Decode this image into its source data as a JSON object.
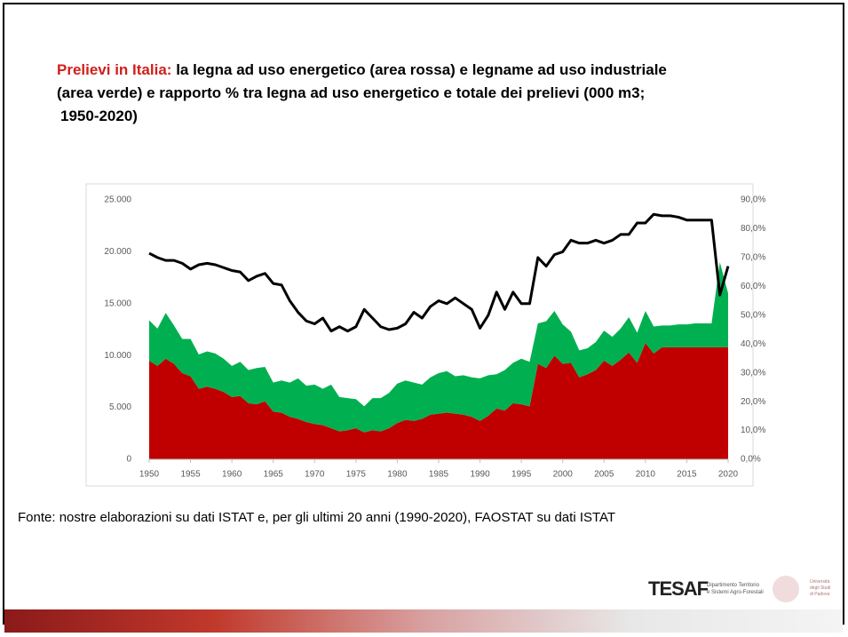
{
  "slide": {
    "title_prefix": "Prelievi in Italia:",
    "title_lines": [
      "la legna ad uso energetico (area rossa) e legname ad uso industriale",
      "(area verde) e rapporto % tra legna ad uso energetico e totale dei prelievi (000 m3;",
      "1950-2020)"
    ],
    "source": "Fonte: nostre elaborazioni su dati ISTAT e, per gli ultimi 20 anni (1990-2020), FAOSTAT su dati ISTAT",
    "logo": "TESAF",
    "logo_sub": [
      "Dipartimento Territorio",
      "e Sistemi Agro-Forestali"
    ],
    "university": [
      "Università",
      "degli Studi",
      "di Padova"
    ]
  },
  "chart_data": {
    "type": "stacked-area-line",
    "x": [
      1950,
      1951,
      1952,
      1953,
      1954,
      1955,
      1956,
      1957,
      1958,
      1959,
      1960,
      1961,
      1962,
      1963,
      1964,
      1965,
      1966,
      1967,
      1968,
      1969,
      1970,
      1971,
      1972,
      1973,
      1974,
      1975,
      1976,
      1977,
      1978,
      1979,
      1980,
      1981,
      1982,
      1983,
      1984,
      1985,
      1986,
      1987,
      1988,
      1989,
      1990,
      1991,
      1992,
      1993,
      1994,
      1995,
      1996,
      1997,
      1998,
      1999,
      2000,
      2001,
      2002,
      2003,
      2004,
      2005,
      2006,
      2007,
      2008,
      2009,
      2010,
      2011,
      2012,
      2013,
      2014,
      2015,
      2016,
      2017,
      2018,
      2019,
      2020
    ],
    "series": [
      {
        "color": "#c00000",
        "values": [
          9500,
          9000,
          9700,
          9200,
          8300,
          8000,
          6800,
          7000,
          6800,
          6500,
          6000,
          6100,
          5400,
          5300,
          5600,
          4600,
          4500,
          4100,
          3900,
          3600,
          3400,
          3300,
          3000,
          2700,
          2800,
          3000,
          2600,
          2800,
          2700,
          3000,
          3500,
          3800,
          3700,
          3900,
          4300,
          4400,
          4500,
          4400,
          4300,
          4100,
          3700,
          4200,
          4900,
          4700,
          5400,
          5300,
          5100,
          9200,
          8800,
          10000,
          9200,
          9300,
          7900,
          8200,
          8600,
          9500,
          9000,
          9600,
          10300,
          9300,
          11200,
          10200,
          10800,
          10800,
          10800,
          10800,
          10800,
          10800,
          10800,
          10800,
          10800
        ]
      },
      {
        "color": "#00b050",
        "values": [
          3900,
          3600,
          4400,
          3700,
          3300,
          3600,
          3300,
          3400,
          3400,
          3200,
          3000,
          3300,
          3200,
          3500,
          3300,
          2800,
          3100,
          3300,
          3900,
          3500,
          3800,
          3500,
          4200,
          3300,
          3100,
          2800,
          2500,
          3100,
          3200,
          3400,
          3800,
          3800,
          3700,
          3300,
          3600,
          3900,
          4000,
          3600,
          3800,
          3800,
          4100,
          3900,
          3300,
          3900,
          3900,
          4400,
          4300,
          3900,
          4500,
          4300,
          3800,
          3000,
          2600,
          2500,
          2700,
          2900,
          2800,
          3000,
          3400,
          2900,
          3100,
          2600,
          2100,
          2100,
          2200,
          2200,
          2300,
          2300,
          2300,
          8200,
          5200
        ]
      },
      {
        "color": "#000000",
        "axis": "y2",
        "values": [
          71.5,
          70,
          69,
          69,
          68,
          66,
          67.5,
          68,
          67.5,
          66.5,
          65.5,
          65,
          62,
          63.5,
          64.5,
          61,
          60.5,
          55,
          51,
          48,
          47,
          49,
          44.5,
          46,
          44.5,
          46,
          52,
          49,
          46,
          45,
          45.5,
          47,
          51,
          49,
          53,
          55,
          54,
          56,
          54,
          52,
          45.5,
          50,
          58,
          52,
          58,
          54,
          54,
          70,
          67,
          71,
          72,
          76,
          75,
          75,
          76,
          75,
          76,
          78,
          78,
          82,
          82,
          85,
          84.5,
          84.5,
          84,
          83,
          83,
          83,
          83,
          57,
          67
        ]
      }
    ],
    "xlim": [
      1950,
      2020
    ],
    "xticks": [
      1950,
      1955,
      1960,
      1965,
      1970,
      1975,
      1980,
      1985,
      1990,
      1995,
      2000,
      2005,
      2010,
      2015,
      2020
    ],
    "ylim": [
      0,
      25000
    ],
    "yticks": [
      0,
      {
        "value": 5000,
        "label": "5.000"
      },
      {
        "value": 10000,
        "label": "10.000"
      },
      {
        "value": 15000,
        "label": "15.000"
      },
      {
        "value": 20000,
        "label": "20.000"
      },
      {
        "value": 25000,
        "label": "25.000"
      }
    ],
    "y2lim": [
      0,
      90
    ],
    "y2ticks": [
      {
        "value": 0,
        "label": "0,0%"
      },
      {
        "value": 10,
        "label": "10,0%"
      },
      {
        "value": 20,
        "label": "20,0%"
      },
      {
        "value": 30,
        "label": "30,0%"
      },
      {
        "value": 40,
        "label": "40,0%"
      },
      {
        "value": 50,
        "label": "50,0%"
      },
      {
        "value": 60,
        "label": "60,0%"
      },
      {
        "value": 70,
        "label": "70,0%"
      },
      {
        "value": 80,
        "label": "80,0%"
      },
      {
        "value": 90,
        "label": "90,0%"
      }
    ]
  }
}
